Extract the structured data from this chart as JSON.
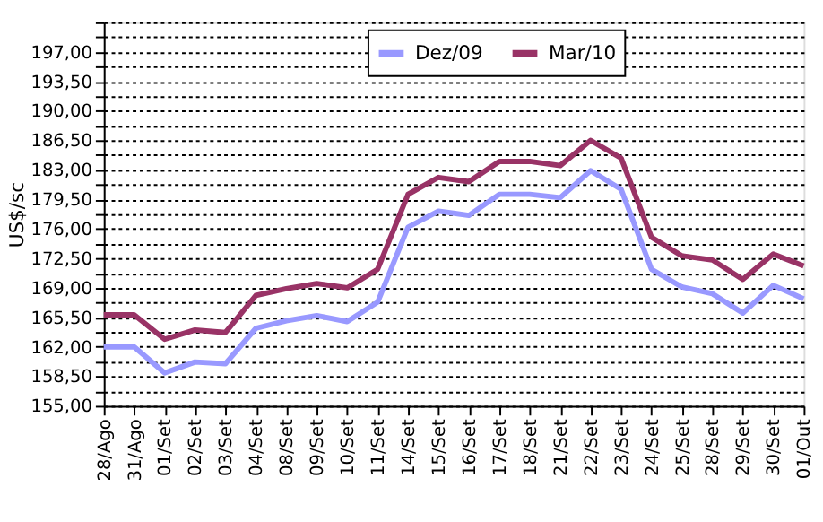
{
  "chart_data": {
    "type": "line",
    "ylabel": "US$/sc",
    "categories": [
      "28/Ago",
      "31/Ago",
      "01/Set",
      "02/Set",
      "03/Set",
      "04/Set",
      "08/Set",
      "09/Set",
      "10/Set",
      "11/Set",
      "14/Set",
      "15/Set",
      "16/Set",
      "17/Set",
      "18/Set",
      "21/Set",
      "22/Set",
      "23/Set",
      "24/Set",
      "25/Set",
      "28/Set",
      "29/Set",
      "30/Set",
      "01/Out"
    ],
    "series": [
      {
        "name": "Dez/09",
        "color": "#9999ff",
        "values": [
          162.0,
          162.0,
          158.9,
          160.2,
          160.0,
          164.2,
          165.1,
          165.7,
          165.0,
          167.3,
          176.2,
          178.1,
          177.6,
          180.1,
          180.1,
          179.7,
          182.9,
          180.7,
          171.2,
          169.1,
          168.3,
          166.0,
          169.3,
          167.7
        ]
      },
      {
        "name": "Mar/10",
        "color": "#993366",
        "values": [
          165.8,
          165.8,
          162.9,
          164.0,
          163.7,
          168.1,
          168.9,
          169.5,
          169.0,
          171.2,
          180.1,
          182.1,
          181.6,
          184.0,
          184.0,
          183.5,
          186.5,
          184.4,
          175.0,
          172.8,
          172.3,
          170.0,
          173.0,
          171.6
        ]
      }
    ],
    "ylim": [
      155,
      200.5
    ],
    "yticks": [
      {
        "value": 155,
        "label": "155,00"
      },
      {
        "value": 156.75,
        "label": null
      },
      {
        "value": 158.5,
        "label": "158,50"
      },
      {
        "value": 160.25,
        "label": null
      },
      {
        "value": 162,
        "label": "162,00"
      },
      {
        "value": 163.75,
        "label": null
      },
      {
        "value": 165.5,
        "label": "165,50"
      },
      {
        "value": 167.25,
        "label": null
      },
      {
        "value": 169,
        "label": "169,00"
      },
      {
        "value": 170.75,
        "label": null
      },
      {
        "value": 172.5,
        "label": "172,50"
      },
      {
        "value": 174.25,
        "label": null
      },
      {
        "value": 176,
        "label": "176,00"
      },
      {
        "value": 177.75,
        "label": null
      },
      {
        "value": 179.5,
        "label": "179,50"
      },
      {
        "value": 181.25,
        "label": null
      },
      {
        "value": 183,
        "label": "183,00"
      },
      {
        "value": 184.75,
        "label": null
      },
      {
        "value": 186.5,
        "label": "186,50"
      },
      {
        "value": 188.25,
        "label": null
      },
      {
        "value": 190,
        "label": "190,00"
      },
      {
        "value": 191.75,
        "label": null
      },
      {
        "value": 193.5,
        "label": "193,50"
      },
      {
        "value": 195.25,
        "label": null
      },
      {
        "value": 197,
        "label": "197,00"
      },
      {
        "value": 198.75,
        "label": null
      },
      {
        "value": 200.5,
        "label": null
      }
    ],
    "grid": "y",
    "legend": "top",
    "line_style": "solid",
    "marker": "none"
  }
}
